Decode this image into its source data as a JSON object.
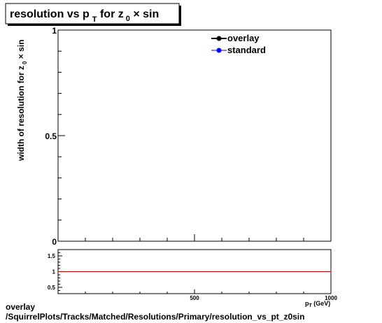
{
  "chart_data": [
    {
      "type": "line",
      "title": "resolution vs p",
      "title_sub": "T",
      "title_mid": " for z",
      "title_sub2": "0",
      "title_end": " × sin",
      "ylabel": "width of resolution for z",
      "ylabel_sub": "0",
      "ylabel_end": " × sin",
      "ylim": [
        0,
        1
      ],
      "xlim": [
        0,
        1000
      ],
      "yticks": [
        {
          "value": 0,
          "label": "0"
        },
        {
          "value": 0.5,
          "label": "0.5"
        },
        {
          "value": 1,
          "label": "1"
        }
      ],
      "legend_position": "top-right",
      "series": [
        {
          "name": "overlay",
          "color": "#000000",
          "values": []
        },
        {
          "name": "standard",
          "color": "#0000ff",
          "values": []
        }
      ]
    },
    {
      "type": "line",
      "xlabel": "p",
      "xlabel_sub": "T",
      "xlabel_unit": " (GeV)",
      "xlim": [
        0,
        1000
      ],
      "ylim": [
        0.3,
        1.7
      ],
      "xticks": [
        {
          "value": 500,
          "label": "500"
        },
        {
          "value": 1000,
          "label": "1000"
        }
      ],
      "yticks": [
        {
          "value": 0.5,
          "label": "0.5"
        },
        {
          "value": 1,
          "label": "1"
        },
        {
          "value": 1.5,
          "label": "1.5"
        }
      ],
      "reference_line": {
        "y": 1,
        "color": "#cc0000"
      }
    }
  ],
  "footer": {
    "line1": "overlay",
    "line2": "/SquirrelPlots/Tracks/Matched/Resolutions/Primary/resolution_vs_pt_z0sin"
  }
}
